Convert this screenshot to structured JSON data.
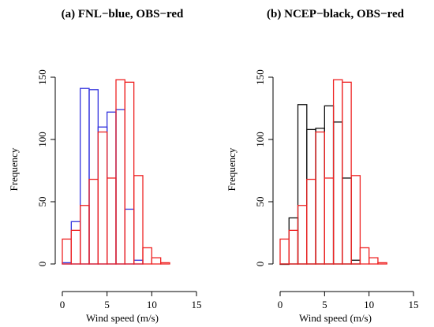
{
  "chart_data": [
    {
      "type": "bar",
      "title": "(a) FNL−blue, OBS−red",
      "xlabel": "Wind speed (m/s)",
      "ylabel": "Frequency",
      "xlim": [
        0,
        15
      ],
      "ylim": [
        0,
        150
      ],
      "xticks": [
        "0",
        "5",
        "10",
        "15"
      ],
      "yticks": [
        "0",
        "50",
        "100",
        "150"
      ],
      "bin_width": 1,
      "series": [
        {
          "name": "FNL",
          "color": "#3333dd",
          "bin_starts": [
            0,
            1,
            2,
            3,
            4,
            5,
            6,
            7,
            8
          ],
          "values": [
            1,
            34,
            141,
            140,
            110,
            122,
            124,
            44,
            3
          ]
        },
        {
          "name": "OBS",
          "color": "#ee2222",
          "bin_starts": [
            0,
            1,
            2,
            3,
            4,
            5,
            6,
            7,
            8,
            9,
            10,
            11
          ],
          "values": [
            20,
            27,
            47,
            68,
            106,
            69,
            148,
            146,
            71,
            13,
            5,
            1
          ]
        }
      ]
    },
    {
      "type": "bar",
      "title": "(b) NCEP−black, OBS−red",
      "xlabel": "Wind speed (m/s)",
      "ylabel": "Frequency",
      "xlim": [
        0,
        15
      ],
      "ylim": [
        0,
        150
      ],
      "xticks": [
        "0",
        "5",
        "10",
        "15"
      ],
      "yticks": [
        "0",
        "50",
        "100",
        "150"
      ],
      "bin_width": 1,
      "series": [
        {
          "name": "NCEP",
          "color": "#111111",
          "bin_starts": [
            0,
            1,
            2,
            3,
            4,
            5,
            6,
            7,
            8
          ],
          "values": [
            0,
            37,
            128,
            108,
            109,
            127,
            114,
            69,
            3
          ]
        },
        {
          "name": "OBS",
          "color": "#ee2222",
          "bin_starts": [
            0,
            1,
            2,
            3,
            4,
            5,
            6,
            7,
            8,
            9,
            10,
            11
          ],
          "values": [
            20,
            27,
            47,
            68,
            106,
            69,
            148,
            146,
            71,
            13,
            5,
            1
          ]
        }
      ]
    }
  ]
}
